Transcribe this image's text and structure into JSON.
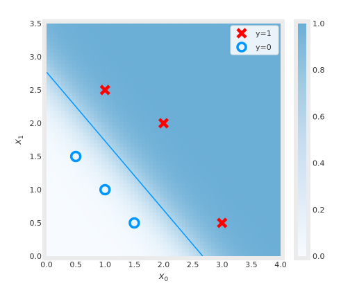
{
  "chart_data": {
    "type": "scatter",
    "title": "",
    "xlabel": "x",
    "xlabel_sub": "0",
    "ylabel": "x",
    "ylabel_sub": "1",
    "xlim": [
      0.0,
      4.0
    ],
    "ylim": [
      0.0,
      3.5
    ],
    "xticks": [
      "0.0",
      "0.5",
      "1.0",
      "1.5",
      "2.0",
      "2.5",
      "3.0",
      "3.5",
      "4.0"
    ],
    "yticks": [
      "0.0",
      "0.5",
      "1.0",
      "1.5",
      "2.0",
      "2.5",
      "3.0",
      "3.5"
    ],
    "series": [
      {
        "name": "y=1",
        "marker": "x",
        "color": "#ff0000",
        "points": [
          [
            1.0,
            2.5
          ],
          [
            2.0,
            2.0
          ],
          [
            3.0,
            0.5
          ]
        ]
      },
      {
        "name": "y=0",
        "marker": "o",
        "color": "#0096ff",
        "points": [
          [
            0.5,
            1.5
          ],
          [
            1.0,
            1.0
          ],
          [
            1.5,
            0.5
          ]
        ]
      }
    ],
    "decision_boundary": {
      "color": "#0096ff",
      "points": [
        [
          0.0,
          2.77
        ],
        [
          2.67,
          0.0
        ]
      ]
    },
    "background": {
      "colormap": "Blues",
      "max_alpha": 0.5,
      "probability_model": {
        "w0": 1.62,
        "w1": 1.56,
        "b": -4.32,
        "sharpness": 2.2
      }
    },
    "legend": {
      "position": "top-right",
      "entries": [
        "y=1",
        "y=0"
      ]
    },
    "colorbar": {
      "range": [
        0.0,
        1.0
      ],
      "ticks": [
        "0.0",
        "0.2",
        "0.4",
        "0.6",
        "0.8",
        "1.0"
      ]
    },
    "grid": false,
    "colors": {
      "axes_background": "#ffffff",
      "frame": "#ebebeb",
      "low": "#f7fbff",
      "high": "#6baed6"
    }
  }
}
